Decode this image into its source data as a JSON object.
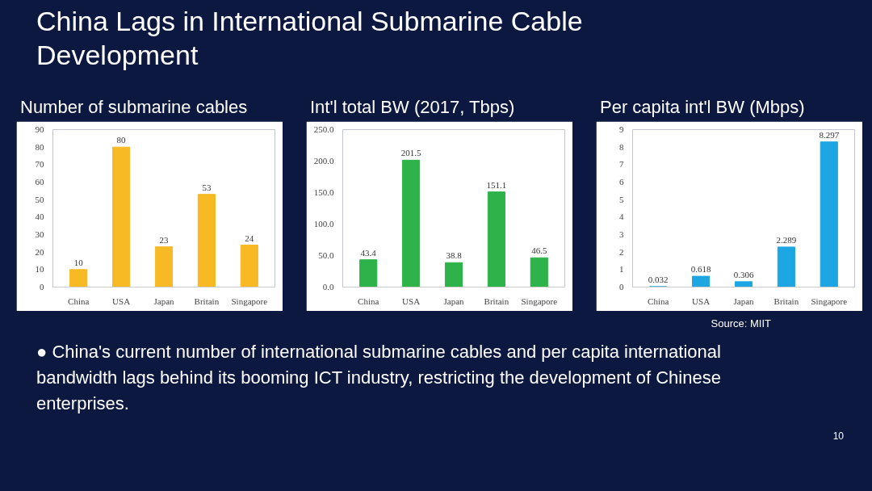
{
  "chart_data": [
    {
      "type": "bar",
      "title": "Number of submarine cables",
      "categories": [
        "China",
        "USA",
        "Japan",
        "Britain",
        "Singapore"
      ],
      "values": [
        10,
        80,
        23,
        53,
        24
      ],
      "color": "#f7b924",
      "ylim": [
        0,
        90
      ],
      "yticks": [
        0,
        10,
        20,
        30,
        40,
        50,
        60,
        70,
        80,
        90
      ],
      "data_labels": true,
      "annotations": [
        "China Lags in International Submarine Cable Development",
        "● China's current number of international submarine cables and per capita international bandwidth lags behind its booming ICT industry, restricting the development of Chinese enterprises.",
        "10"
      ]
    },
    {
      "type": "bar",
      "title": "Int'l total BW (2017, Tbps)",
      "categories": [
        "China",
        "USA",
        "Japan",
        "Britain",
        "Singapore"
      ],
      "values": [
        43.4,
        201.5,
        38.8,
        151.1,
        46.5
      ],
      "color": "#2db34a",
      "ylim": [
        0,
        250
      ],
      "yticks": [
        {
          "value": 0,
          "label": "0.0"
        },
        {
          "value": 50,
          "label": "50.0"
        },
        {
          "value": 100,
          "label": "100.0"
        },
        {
          "value": 150,
          "label": "150.0"
        },
        {
          "value": 200,
          "label": "200.0"
        },
        {
          "value": 250,
          "label": "250.0"
        }
      ],
      "data_labels": true
    },
    {
      "type": "bar",
      "title": "Per capita int'l BW (Mbps)",
      "categories": [
        "China",
        "USA",
        "Japan",
        "Britain",
        "Singapore"
      ],
      "values": [
        0.032,
        0.618,
        0.306,
        2.289,
        8.297
      ],
      "color": "#1ea6e3",
      "ylim": [
        0,
        9
      ],
      "yticks": [
        0,
        1,
        2,
        3,
        4,
        5,
        6,
        7,
        8,
        9
      ],
      "data_labels": true,
      "annotations": [
        "Source: MIIT"
      ]
    }
  ]
}
